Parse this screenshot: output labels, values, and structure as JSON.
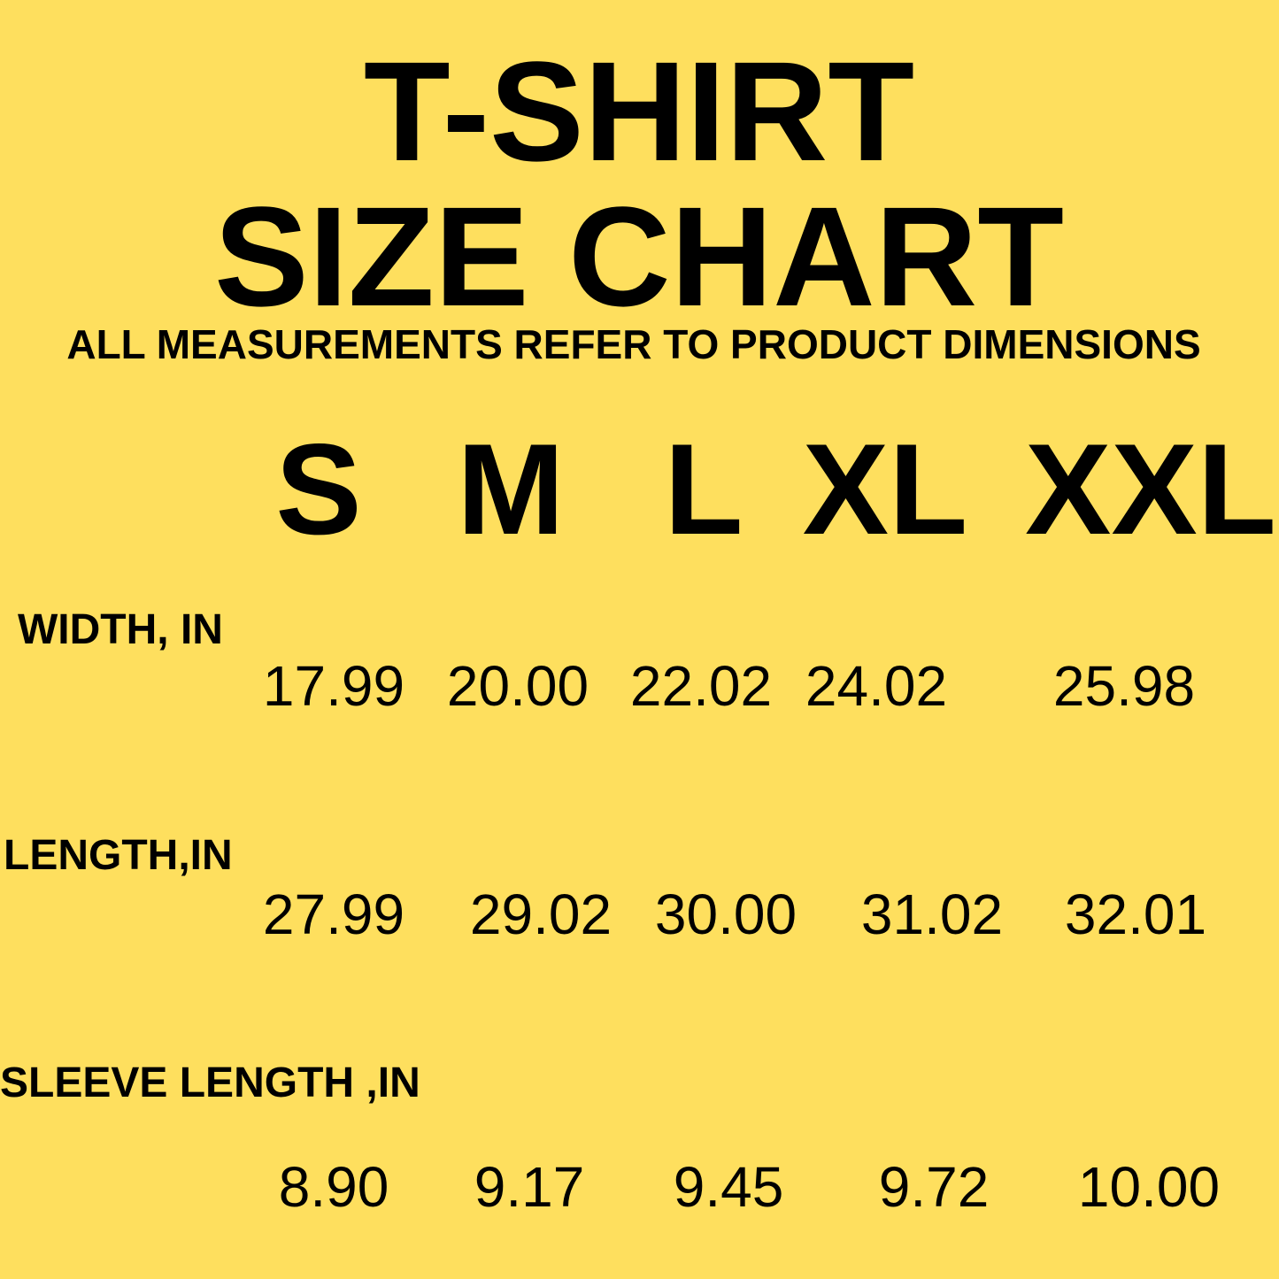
{
  "title_line1": "T-SHIRT",
  "title_line2": "SIZE CHART",
  "subtitle": "ALL MEASUREMENTS REFER TO PRODUCT DIMENSIONS",
  "background_color": "#FEDF5E",
  "sizes": [
    "S",
    "M",
    "L",
    "XL",
    "XXL"
  ],
  "rows": [
    {
      "label": "WIDTH, IN",
      "values": [
        "17.99",
        "20.00",
        "22.02",
        "24.02",
        "25.98"
      ]
    },
    {
      "label": "LENGTH,IN",
      "values": [
        "27.99",
        "29.02",
        "30.00",
        "31.02",
        "32.01"
      ]
    },
    {
      "label": "SLEEVE LENGTH ,IN",
      "values": [
        "8.90",
        "9.17",
        "9.45",
        "9.72",
        "10.00"
      ]
    }
  ]
}
